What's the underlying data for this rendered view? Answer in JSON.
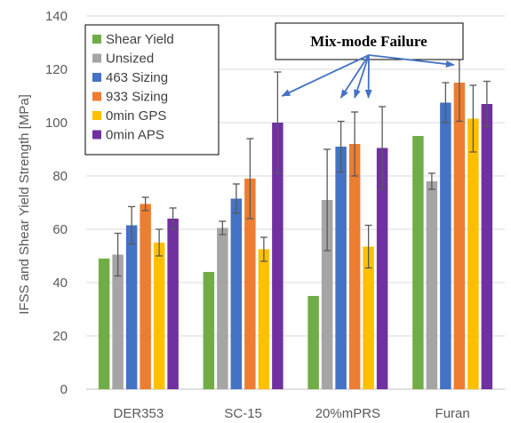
{
  "chart_data": {
    "type": "bar",
    "title": "",
    "xlabel": "",
    "ylabel": "IFSS and Shear Yield Strength [MPa]",
    "ylim": [
      0,
      140
    ],
    "yticks": [
      0,
      20,
      40,
      60,
      80,
      100,
      120,
      140
    ],
    "grid": true,
    "legend_position": "top-left",
    "categories": [
      "DER353",
      "SC-15",
      "20%mPRS",
      "Furan"
    ],
    "series": [
      {
        "name": "Shear Yield",
        "color": "#70AD47",
        "values": [
          49,
          44,
          35,
          95
        ],
        "errors": [
          null,
          null,
          null,
          null
        ]
      },
      {
        "name": "Unsized",
        "color": "#A5A5A5",
        "values": [
          50.5,
          60.5,
          71,
          78
        ],
        "errors": [
          8,
          2.5,
          19,
          3
        ]
      },
      {
        "name": "463 Sizing",
        "color": "#4472C4",
        "values": [
          61.5,
          71.5,
          91,
          107.5
        ],
        "errors": [
          7,
          5.5,
          9.5,
          7.5
        ]
      },
      {
        "name": "933 Sizing",
        "color": "#ED7D31",
        "values": [
          69.5,
          79,
          92,
          115
        ],
        "errors": [
          2.5,
          15,
          12,
          14.5
        ]
      },
      {
        "name": "0min GPS",
        "color": "#FFC000",
        "values": [
          55,
          52.5,
          53.5,
          101.5
        ],
        "errors": [
          5,
          4.5,
          8,
          12.5
        ]
      },
      {
        "name": "0min APS",
        "color": "#7030A0",
        "values": [
          64,
          100,
          90.5,
          107
        ],
        "errors": [
          4,
          19,
          15.5,
          8.5
        ]
      }
    ],
    "annotation": {
      "text": "Mix-mode Failure",
      "arrow_targets": [
        {
          "category": "SC-15",
          "series": "0min APS"
        },
        {
          "category": "20%mPRS",
          "series": "463 Sizing"
        },
        {
          "category": "20%mPRS",
          "series": "933 Sizing"
        },
        {
          "category": "20%mPRS",
          "series": "0min GPS"
        },
        {
          "category": "Furan",
          "series": "933 Sizing"
        }
      ]
    }
  }
}
